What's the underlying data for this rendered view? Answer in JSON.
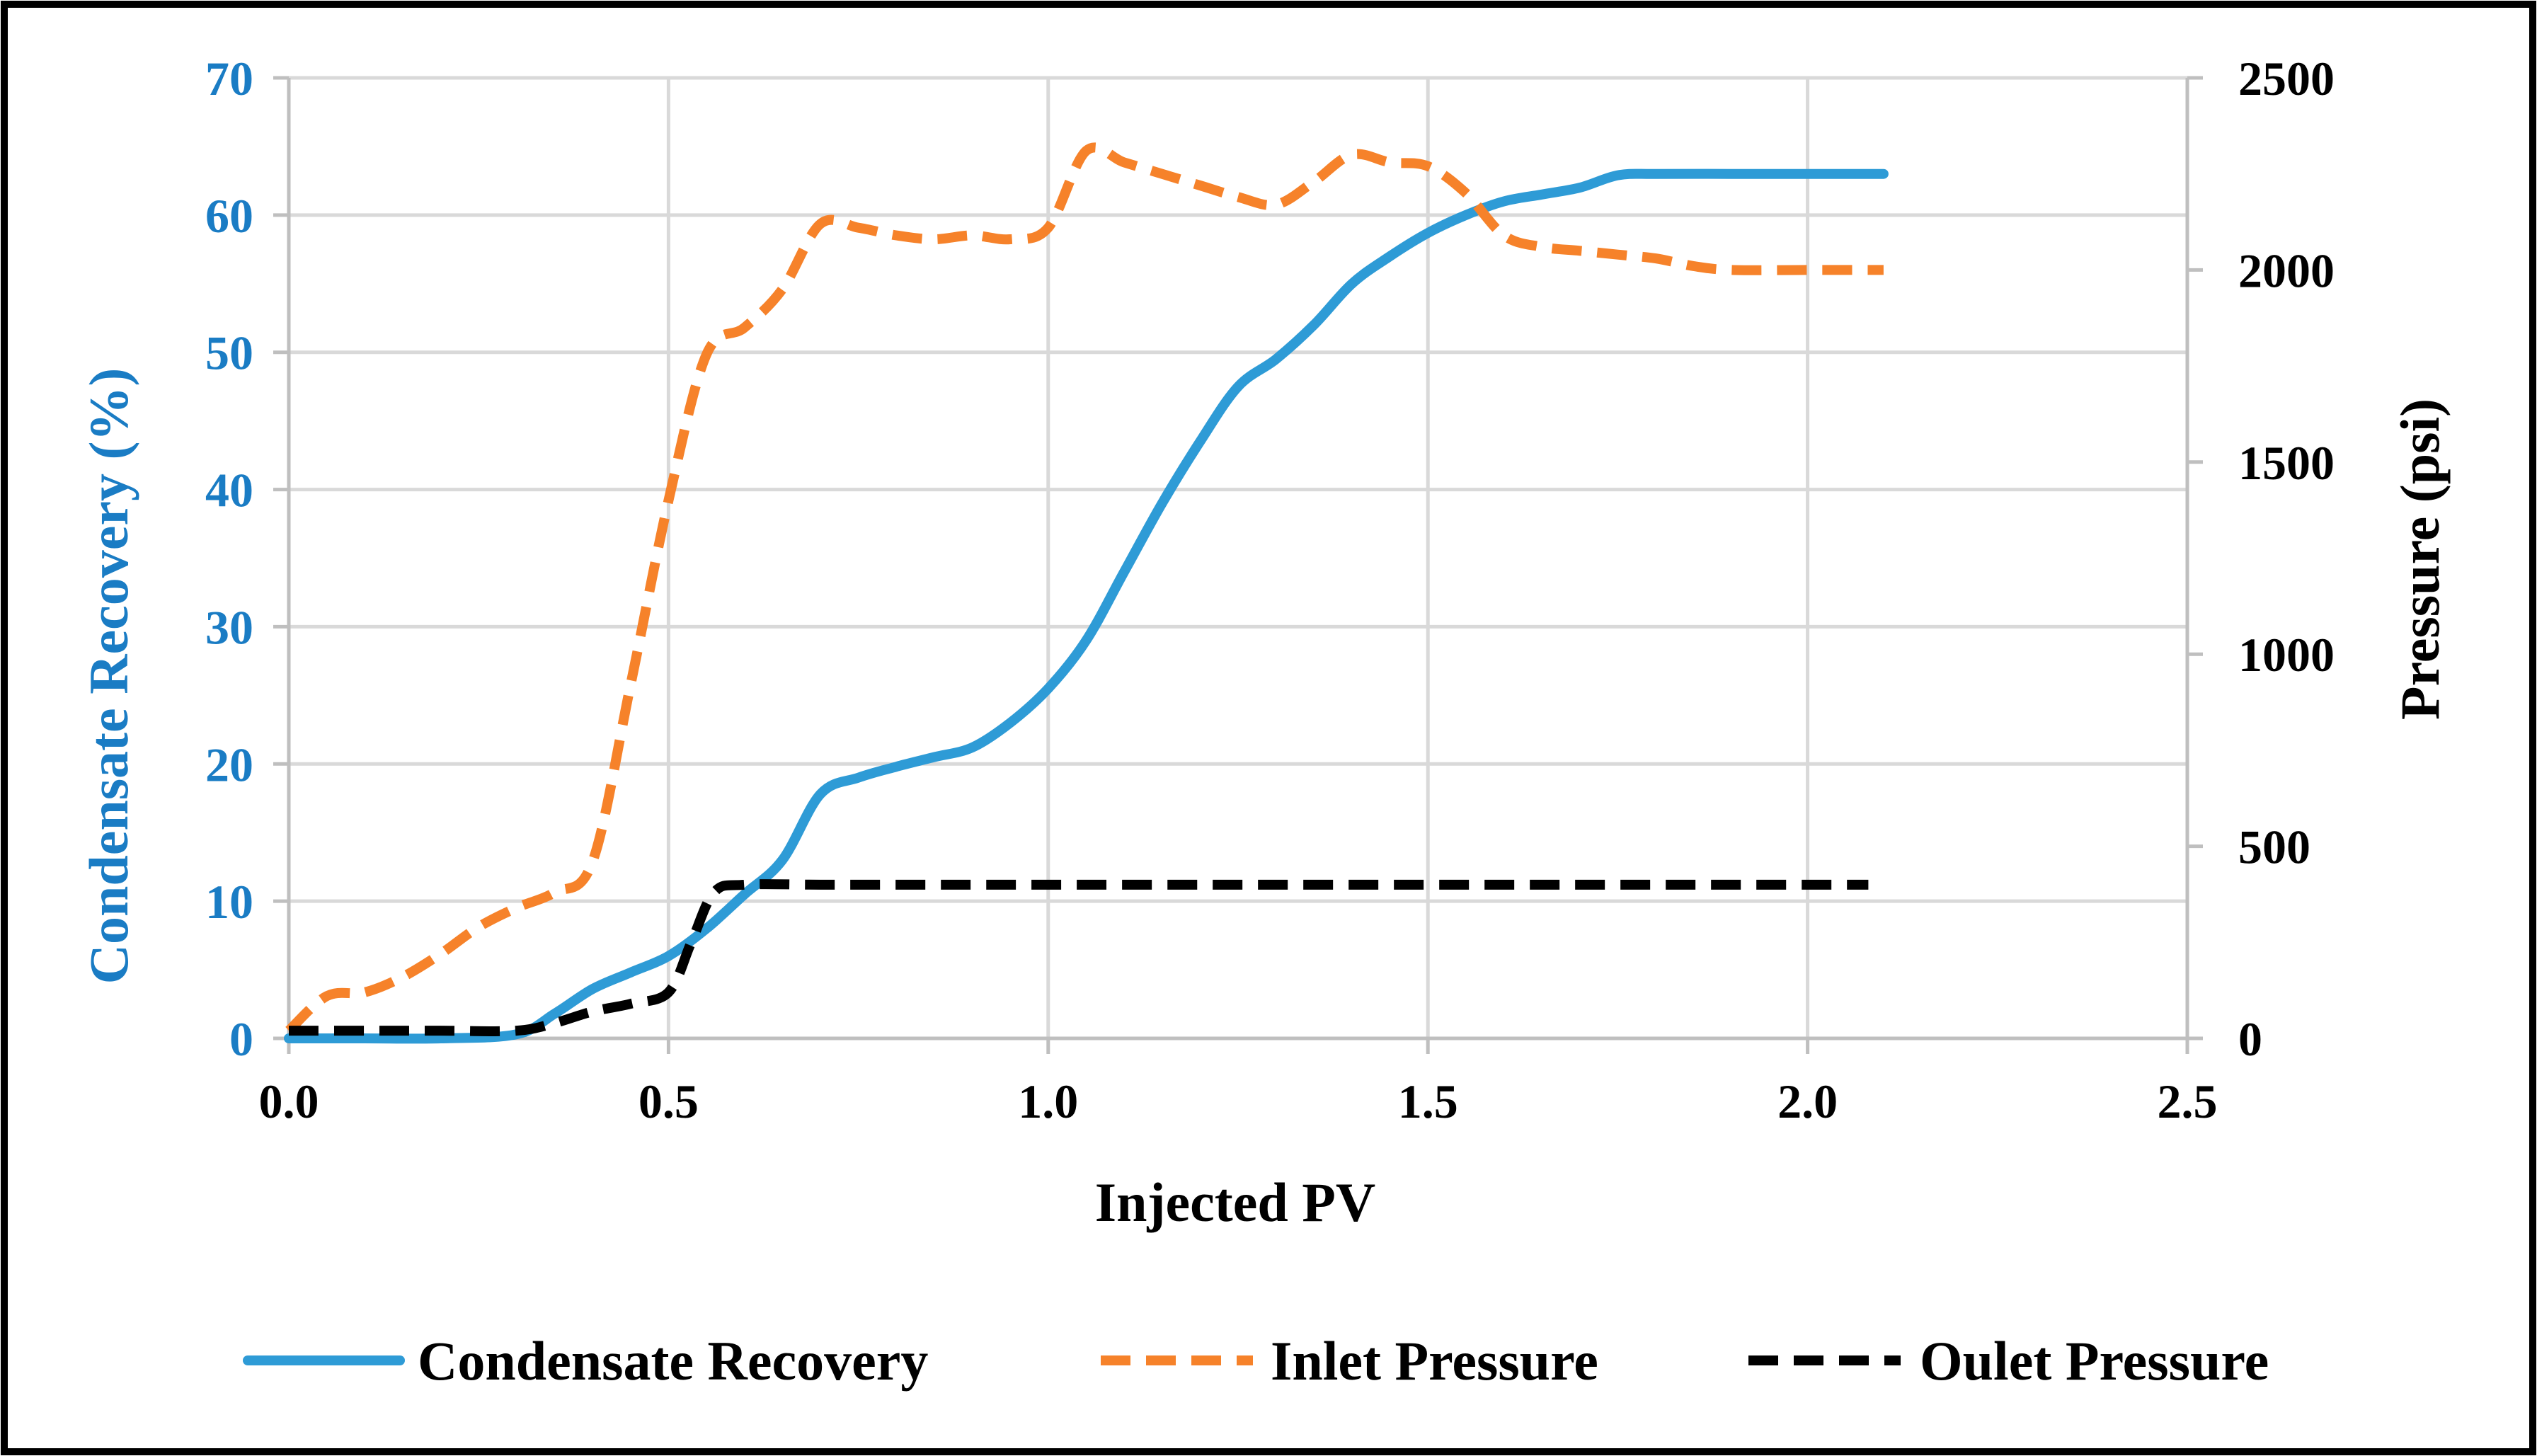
{
  "chart_data": {
    "type": "line",
    "title": "",
    "xlabel": "Injected PV",
    "ylabel_left": "Condensate Recovery (%)",
    "ylabel_right": "Pressure (psi)",
    "xlim": [
      0,
      2.5
    ],
    "ylim_left": [
      0,
      70
    ],
    "ylim_right": [
      0,
      2500
    ],
    "x_ticks": [
      "0.0",
      "0.5",
      "1.0",
      "1.5",
      "2.0",
      "2.5"
    ],
    "x_tick_values": [
      0,
      0.5,
      1.0,
      1.5,
      2.0,
      2.5
    ],
    "y_left_ticks": [
      "0",
      "10",
      "20",
      "30",
      "40",
      "50",
      "60",
      "70"
    ],
    "y_left_tick_values": [
      0,
      10,
      20,
      30,
      40,
      50,
      60,
      70
    ],
    "y_right_ticks": [
      "0",
      "500",
      "1000",
      "1500",
      "2000",
      "2500"
    ],
    "y_right_tick_values": [
      0,
      500,
      1000,
      1500,
      2000,
      2500
    ],
    "grid": true,
    "legend_position": "bottom",
    "series": [
      {
        "name": "Condensate Recovery",
        "axis": "left",
        "color": "#2e9bd6",
        "dash": "solid",
        "points": [
          [
            0,
            0
          ],
          [
            0.1,
            0
          ],
          [
            0.2,
            0
          ],
          [
            0.3,
            0.3
          ],
          [
            0.35,
            1.8
          ],
          [
            0.4,
            3.6
          ],
          [
            0.45,
            4.8
          ],
          [
            0.5,
            6
          ],
          [
            0.55,
            8
          ],
          [
            0.6,
            10.5
          ],
          [
            0.65,
            13
          ],
          [
            0.7,
            17.8
          ],
          [
            0.75,
            19
          ],
          [
            0.8,
            19.8
          ],
          [
            0.85,
            20.5
          ],
          [
            0.9,
            21.2
          ],
          [
            0.95,
            23
          ],
          [
            1.0,
            25.5
          ],
          [
            1.05,
            29
          ],
          [
            1.1,
            34
          ],
          [
            1.15,
            39
          ],
          [
            1.2,
            43.5
          ],
          [
            1.25,
            47.5
          ],
          [
            1.3,
            49.5
          ],
          [
            1.35,
            52
          ],
          [
            1.4,
            55
          ],
          [
            1.45,
            57
          ],
          [
            1.5,
            58.7
          ],
          [
            1.55,
            60
          ],
          [
            1.6,
            61
          ],
          [
            1.65,
            61.5
          ],
          [
            1.7,
            62
          ],
          [
            1.75,
            62.9
          ],
          [
            1.8,
            63
          ],
          [
            1.9,
            63
          ],
          [
            2.0,
            63
          ],
          [
            2.1,
            63
          ]
        ]
      },
      {
        "name": "Inlet Pressure",
        "axis": "right",
        "color": "#f6822a",
        "dash": "dashed",
        "points": [
          [
            0,
            20
          ],
          [
            0.05,
            110
          ],
          [
            0.1,
            120
          ],
          [
            0.15,
            160
          ],
          [
            0.2,
            220
          ],
          [
            0.25,
            290
          ],
          [
            0.3,
            340
          ],
          [
            0.35,
            380
          ],
          [
            0.4,
            460
          ],
          [
            0.45,
            920
          ],
          [
            0.5,
            1400
          ],
          [
            0.55,
            1780
          ],
          [
            0.6,
            1850
          ],
          [
            0.65,
            1950
          ],
          [
            0.7,
            2120
          ],
          [
            0.75,
            2110
          ],
          [
            0.8,
            2090
          ],
          [
            0.85,
            2080
          ],
          [
            0.9,
            2090
          ],
          [
            0.95,
            2080
          ],
          [
            1.0,
            2110
          ],
          [
            1.05,
            2310
          ],
          [
            1.1,
            2280
          ],
          [
            1.15,
            2250
          ],
          [
            1.2,
            2220
          ],
          [
            1.25,
            2190
          ],
          [
            1.3,
            2170
          ],
          [
            1.35,
            2230
          ],
          [
            1.4,
            2300
          ],
          [
            1.45,
            2280
          ],
          [
            1.5,
            2270
          ],
          [
            1.55,
            2200
          ],
          [
            1.6,
            2090
          ],
          [
            1.65,
            2060
          ],
          [
            1.7,
            2050
          ],
          [
            1.75,
            2040
          ],
          [
            1.8,
            2030
          ],
          [
            1.85,
            2010
          ],
          [
            1.9,
            2000
          ],
          [
            2.0,
            2000
          ],
          [
            2.1,
            2000
          ]
        ]
      },
      {
        "name": "Oulet Pressure",
        "axis": "right",
        "color": "#000000",
        "dash": "dashed",
        "points": [
          [
            0,
            20
          ],
          [
            0.1,
            20
          ],
          [
            0.2,
            20
          ],
          [
            0.3,
            20
          ],
          [
            0.35,
            40
          ],
          [
            0.4,
            70
          ],
          [
            0.45,
            90
          ],
          [
            0.5,
            120
          ],
          [
            0.53,
            250
          ],
          [
            0.56,
            380
          ],
          [
            0.6,
            400
          ],
          [
            0.7,
            400
          ],
          [
            0.8,
            400
          ],
          [
            0.9,
            400
          ],
          [
            1.0,
            400
          ],
          [
            1.2,
            400
          ],
          [
            1.4,
            400
          ],
          [
            1.6,
            400
          ],
          [
            1.8,
            400
          ],
          [
            2.0,
            400
          ],
          [
            2.08,
            400
          ]
        ]
      }
    ]
  }
}
